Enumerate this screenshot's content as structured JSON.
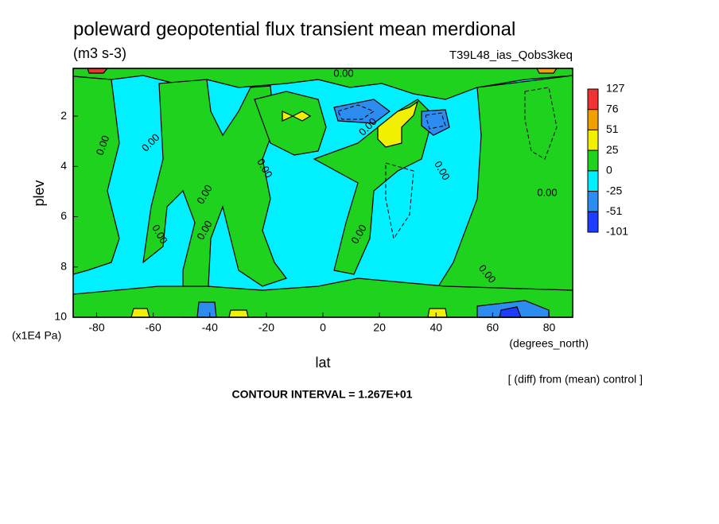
{
  "chart_data": {
    "type": "contour",
    "title": "poleward geopotential flux transient mean merdional",
    "subtitle": "(m3 s-3)",
    "run_label": "T39L48_ias_Qobs3keq",
    "x_label": "lat",
    "x_unit": "(degrees_north)",
    "y_label": "plev",
    "y_unit": "(x1E4 Pa)",
    "note": "[ (diff) from (mean) control ]",
    "contour_interval": "CONTOUR INTERVAL = 1.267E+01",
    "contour_label": "0.00",
    "xlim": [
      -88.3,
      88.3
    ],
    "xticks": [
      -80,
      -60,
      -40,
      -20,
      0,
      20,
      40,
      60,
      80
    ],
    "ylim": [
      10,
      0.1
    ],
    "yticks": [
      2,
      4,
      6,
      8,
      10
    ],
    "colorbar": {
      "levels": [
        127,
        76,
        51,
        25,
        0,
        -25,
        -51,
        -101
      ],
      "colors": [
        "#f03232",
        "#f0a000",
        "#f0f000",
        "#1ed21e",
        "#00f0ff",
        "#2d8cf0",
        "#1e3cff"
      ]
    }
  }
}
